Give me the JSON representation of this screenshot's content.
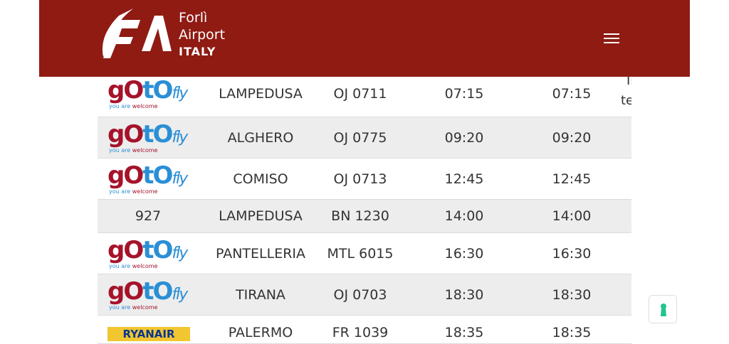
{
  "header": {
    "brand_line1": "Forlì",
    "brand_line2": "Airport",
    "brand_line3": "ITALY",
    "menu_icon": "hamburger-icon",
    "bg_color": "#8f1b13"
  },
  "airline_logos": {
    "gotofly": {
      "part1": "gO",
      "part2": "tO",
      "part3": "fly",
      "tagline1": "you are ",
      "tagline2": "welcome"
    },
    "ryanair": "RYANAIR"
  },
  "flights": [
    {
      "airline": "logo:gotofly",
      "destination": "LAMPEDUSA",
      "flight": "OJ 0711",
      "scheduled": "07:15",
      "expected": "07:15",
      "status_line1": "In",
      "status_line2": "te"
    },
    {
      "airline": "logo:gotofly",
      "destination": "ALGHERO",
      "flight": "OJ 0775",
      "scheduled": "09:20",
      "expected": "09:20"
    },
    {
      "airline": "logo:gotofly",
      "destination": "COMISO",
      "flight": "OJ 0713",
      "scheduled": "12:45",
      "expected": "12:45"
    },
    {
      "airline": "927",
      "destination": "LAMPEDUSA",
      "flight": "BN 1230",
      "scheduled": "14:00",
      "expected": "14:00"
    },
    {
      "airline": "logo:gotofly",
      "destination": "PANTELLERIA",
      "flight": "MTL 6015",
      "scheduled": "16:30",
      "expected": "16:30"
    },
    {
      "airline": "logo:gotofly",
      "destination": "TIRANA",
      "flight": "OJ 0703",
      "scheduled": "18:30",
      "expected": "18:30"
    },
    {
      "airline": "logo:ryanair",
      "destination": "PALERMO",
      "flight": "FR 1039",
      "scheduled": "18:35",
      "expected": "18:35"
    }
  ],
  "accessibility": {
    "icon": "accessibility-icon",
    "color": "#1fc590"
  }
}
